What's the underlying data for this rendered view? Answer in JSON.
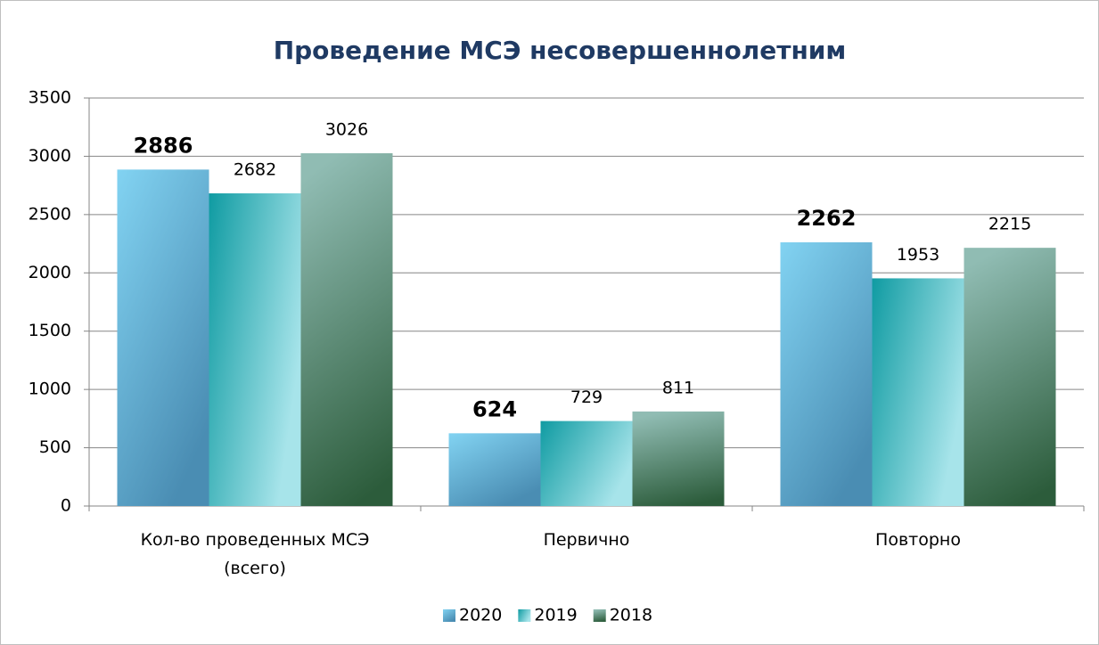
{
  "chart_data": {
    "type": "bar",
    "title": "Проведение МСЭ несовершеннолетним",
    "categories": [
      "Кол-во проведенных МСЭ (всего)",
      "Первично",
      "Повторно"
    ],
    "series": [
      {
        "name": "2020",
        "color": "#6cc4e8",
        "values": [
          2886,
          624,
          2262
        ]
      },
      {
        "name": "2019",
        "color": "#17a5ab",
        "values": [
          2682,
          729,
          1953
        ]
      },
      {
        "name": "2018",
        "color": "#6f9e90",
        "values": [
          3026,
          811,
          2215
        ]
      }
    ],
    "ylim": [
      0,
      3500
    ],
    "yticks": [
      0,
      500,
      1000,
      1500,
      2000,
      2500,
      3000,
      3500
    ],
    "grid": true,
    "legend": "bottom"
  }
}
